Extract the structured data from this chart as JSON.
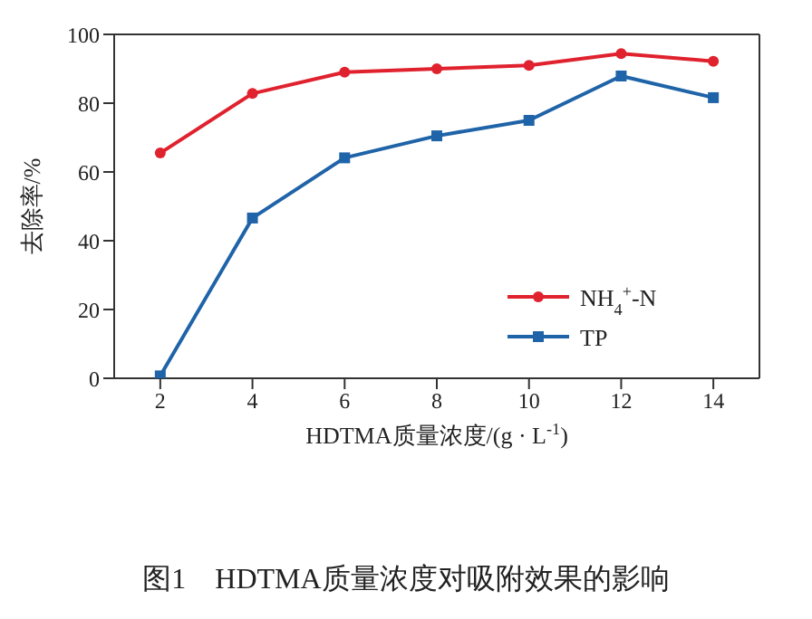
{
  "chart_data": {
    "type": "line",
    "title": "图1　HDTMA质量浓度对吸附效果的影响",
    "xlabel": "HDTMA质量浓度/(g · L$^{-1}$)",
    "ylabel": "去除率/%",
    "x": [
      2,
      4,
      6,
      8,
      10,
      12,
      14
    ],
    "series": [
      {
        "name": "NH$_{4}$$^{+}$-N",
        "color": "#e0212e",
        "marker": "circle",
        "values": [
          65.5,
          82.8,
          89,
          90,
          91,
          94.4,
          92.2
        ]
      },
      {
        "name": "TP",
        "color": "#1f63a8",
        "marker": "square",
        "values": [
          0.7,
          46.6,
          64.1,
          70.5,
          75,
          87.9,
          81.6
        ]
      }
    ],
    "xlim": [
      1,
      15
    ],
    "xticks": [
      2,
      4,
      6,
      8,
      10,
      12,
      14
    ],
    "ylim": [
      0,
      100
    ],
    "yticks": [
      0,
      20,
      40,
      60,
      80,
      100
    ],
    "grid": false,
    "legend": "bottom right"
  }
}
